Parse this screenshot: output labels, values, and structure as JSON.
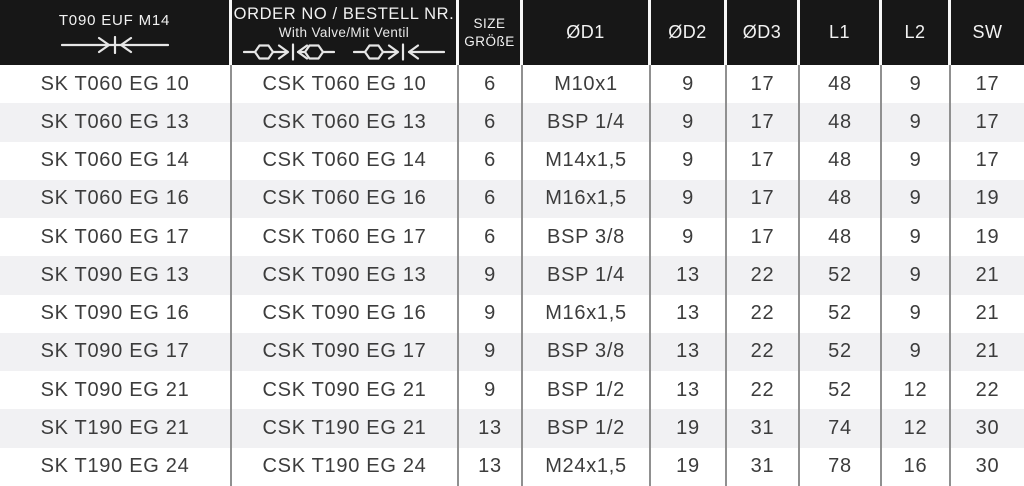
{
  "header": {
    "model": {
      "title": "T090 EUF M14",
      "icon": "coupling-plain-icon"
    },
    "order": {
      "title": "ORDER NO / BESTELL NR.",
      "subtitle": "With Valve/Mit Ventil",
      "icons": [
        "coupling-valve-both-icon",
        "coupling-valve-flow-icon"
      ]
    },
    "size": {
      "line1": "SIZE",
      "line2": "GRÖßE"
    },
    "dims": [
      "ØD1",
      "ØD2",
      "ØD3",
      "L1",
      "L2",
      "SW"
    ]
  },
  "rows": [
    [
      "SK T060 EG 10",
      "CSK T060 EG 10",
      "6",
      "M10x1",
      "9",
      "17",
      "48",
      "9",
      "17"
    ],
    [
      "SK T060 EG 13",
      "CSK T060 EG 13",
      "6",
      "BSP 1/4",
      "9",
      "17",
      "48",
      "9",
      "17"
    ],
    [
      "SK T060 EG 14",
      "CSK T060 EG 14",
      "6",
      "M14x1,5",
      "9",
      "17",
      "48",
      "9",
      "17"
    ],
    [
      "SK T060 EG 16",
      "CSK T060 EG 16",
      "6",
      "M16x1,5",
      "9",
      "17",
      "48",
      "9",
      "19"
    ],
    [
      "SK T060 EG 17",
      "CSK T060 EG 17",
      "6",
      "BSP 3/8",
      "9",
      "17",
      "48",
      "9",
      "19"
    ],
    [
      "SK T090 EG 13",
      "CSK T090 EG 13",
      "9",
      "BSP 1/4",
      "13",
      "22",
      "52",
      "9",
      "21"
    ],
    [
      "SK T090 EG 16",
      "CSK T090 EG 16",
      "9",
      "M16x1,5",
      "13",
      "22",
      "52",
      "9",
      "21"
    ],
    [
      "SK T090 EG 17",
      "CSK T090 EG 17",
      "9",
      "BSP 3/8",
      "13",
      "22",
      "52",
      "9",
      "21"
    ],
    [
      "SK T090 EG 21",
      "CSK T090 EG 21",
      "9",
      "BSP 1/2",
      "13",
      "22",
      "52",
      "12",
      "22"
    ],
    [
      "SK T190 EG 21",
      "CSK T190 EG 21",
      "13",
      "BSP 1/2",
      "19",
      "31",
      "74",
      "12",
      "30"
    ],
    [
      "SK T190 EG 24",
      "CSK T190 EG 24",
      "13",
      "M24x1,5",
      "19",
      "31",
      "78",
      "16",
      "30"
    ]
  ],
  "colors": {
    "header_bg": "#171717",
    "header_text": "#f2f2f2",
    "header_divider": "#f7f7f7",
    "body_divider": "#909090",
    "row_alt_bg": "#f1f1f3",
    "row_bg": "#ffffff",
    "body_text": "#3c3c3c"
  }
}
